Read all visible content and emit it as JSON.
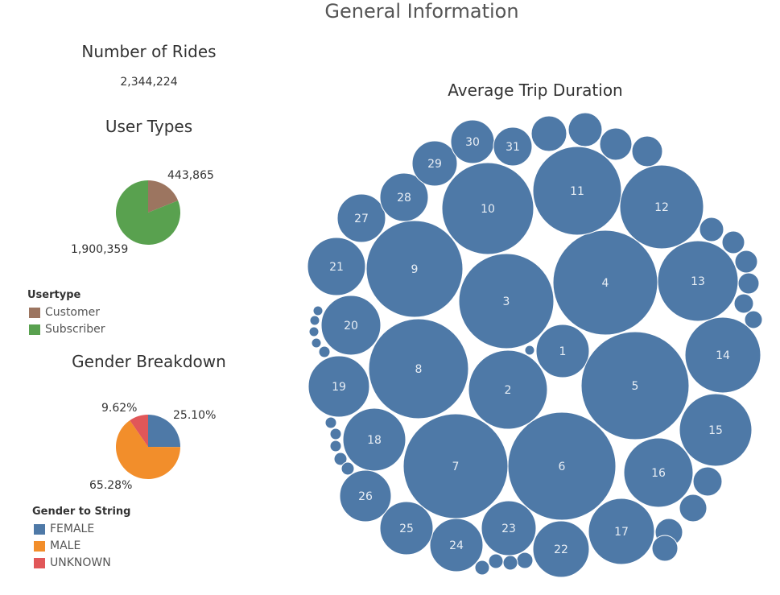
{
  "page_title": "General Information",
  "rides": {
    "title": "Number of Rides",
    "value": "2,344,224"
  },
  "user_types": {
    "title": "User Types",
    "legend_title": "Usertype",
    "labels": [
      "443,865",
      "1,900,359"
    ],
    "legend": [
      {
        "label": "Customer",
        "color": "#9c7560"
      },
      {
        "label": "Subscriber",
        "color": "#59a14f"
      }
    ]
  },
  "gender": {
    "title": "Gender Breakdown",
    "legend_title": "Gender to String",
    "labels": [
      "25.10%",
      "65.28%",
      "9.62%"
    ],
    "legend": [
      {
        "label": "FEMALE",
        "color": "#4e79a7"
      },
      {
        "label": "MALE",
        "color": "#f28e2b"
      },
      {
        "label": "UNKNOWN",
        "color": "#e15759"
      }
    ]
  },
  "trip_duration": {
    "title": "Average Trip Duration",
    "bubble_color": "#4e79a7"
  },
  "chart_data": [
    {
      "type": "pie",
      "title": "User Types",
      "categories": [
        "Customer",
        "Subscriber"
      ],
      "values": [
        443865,
        1900359
      ],
      "colors": [
        "#9c7560",
        "#59a14f"
      ]
    },
    {
      "type": "pie",
      "title": "Gender Breakdown",
      "categories": [
        "FEMALE",
        "MALE",
        "UNKNOWN"
      ],
      "values": [
        25.1,
        65.28,
        9.62
      ],
      "colors": [
        "#4e79a7",
        "#f28e2b",
        "#e15759"
      ]
    },
    {
      "type": "bubble",
      "title": "Average Trip Duration",
      "labels": [
        "1",
        "2",
        "3",
        "4",
        "5",
        "6",
        "7",
        "8",
        "9",
        "10",
        "11",
        "12",
        "13",
        "14",
        "15",
        "16",
        "17",
        "18",
        "19",
        "20",
        "21",
        "22",
        "23",
        "24",
        "25",
        "26",
        "27",
        "28",
        "29",
        "30",
        "31"
      ],
      "relative_size": [
        33,
        49,
        59,
        65,
        67,
        67,
        65,
        62,
        60,
        57,
        55,
        52,
        50,
        47,
        45,
        43,
        41,
        39,
        38,
        37,
        36,
        35,
        34,
        33,
        33,
        32,
        30,
        30,
        28,
        27,
        24
      ]
    }
  ]
}
